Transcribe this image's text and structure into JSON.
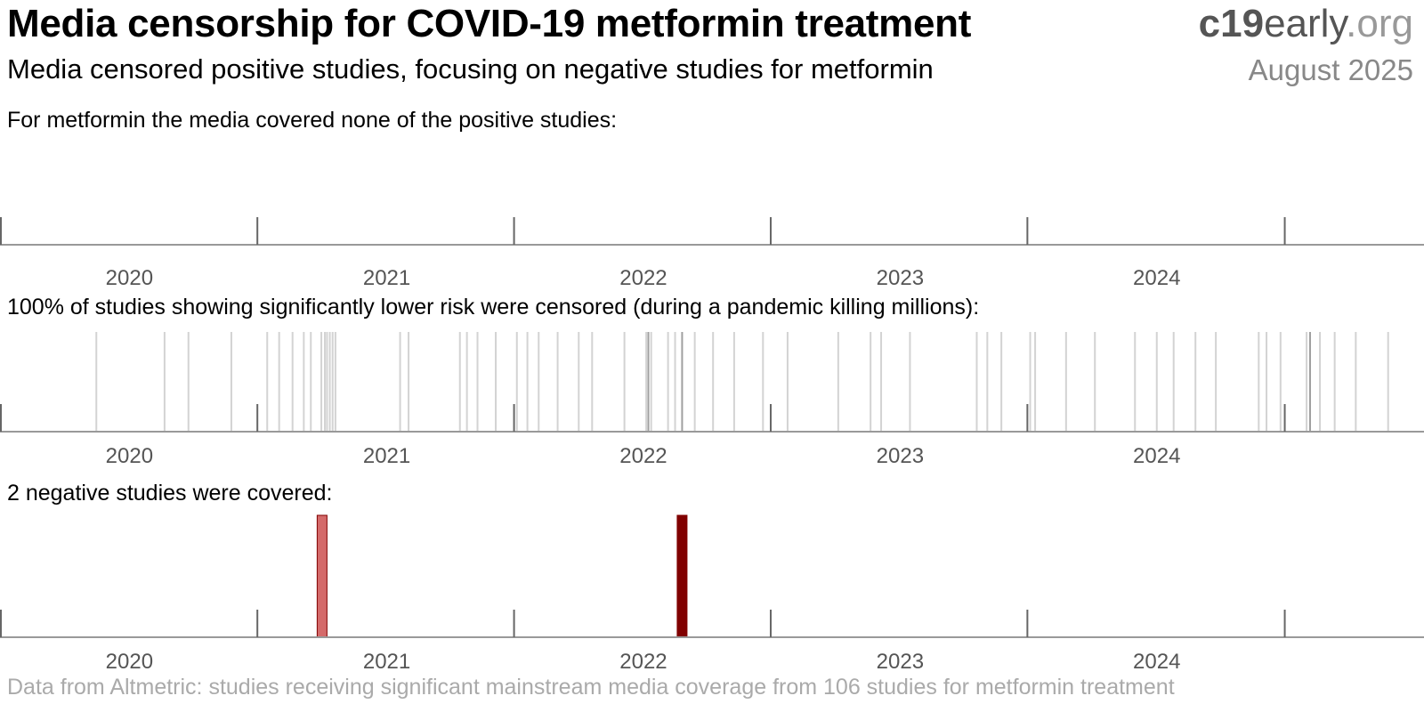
{
  "header": {
    "title": "Media censorship for COVID-19 metformin treatment",
    "brand_bold": "c19",
    "brand_mid": "early",
    "brand_end": ".org",
    "subtitle": "Media censored positive studies, focusing on negative studies for metformin",
    "date": "August 2025"
  },
  "footer": "Data from Altmetric: studies receiving significant mainstream media coverage from 106 studies for metformin treatment",
  "colors": {
    "axis": "#999999",
    "tick": "#666666",
    "censored_line": "#d3d3d3",
    "censored_line_dark": "#a0a0a0",
    "negative_light": "#d46a6a",
    "negative_dark": "#800000"
  },
  "chart_data": [
    {
      "type": "timeline",
      "title": "For metformin the media covered none of the positive studies:",
      "x_axis_type": "date",
      "xlim": [
        "2019-07-01",
        "2025-01-15"
      ],
      "ticks": [
        "2019-07-01",
        "2020-07-01",
        "2021-07-01",
        "2022-07-01",
        "2023-07-01",
        "2024-07-01"
      ],
      "tick_labels": [
        {
          "label": "2020",
          "date": "2020-01-01"
        },
        {
          "label": "2021",
          "date": "2021-01-01"
        },
        {
          "label": "2022",
          "date": "2022-01-01"
        },
        {
          "label": "2023",
          "date": "2023-01-01"
        },
        {
          "label": "2024",
          "date": "2024-01-01"
        }
      ],
      "events": []
    },
    {
      "type": "timeline",
      "title": "100% of studies showing significantly lower risk were censored (during a pandemic killing millions):",
      "x_axis_type": "date",
      "xlim": [
        "2019-07-01",
        "2025-01-15"
      ],
      "ticks": [
        "2019-07-01",
        "2020-07-01",
        "2021-07-01",
        "2022-07-01",
        "2023-07-01",
        "2024-07-01"
      ],
      "tick_labels": [
        {
          "label": "2020",
          "date": "2020-01-01"
        },
        {
          "label": "2021",
          "date": "2021-01-01"
        },
        {
          "label": "2022",
          "date": "2022-01-01"
        },
        {
          "label": "2023",
          "date": "2023-01-01"
        },
        {
          "label": "2024",
          "date": "2024-01-01"
        }
      ],
      "events": [
        {
          "date": "2019-11-15"
        },
        {
          "date": "2020-02-20"
        },
        {
          "date": "2020-03-25"
        },
        {
          "date": "2020-05-25"
        },
        {
          "date": "2020-07-15"
        },
        {
          "date": "2020-08-01"
        },
        {
          "date": "2020-08-20"
        },
        {
          "date": "2020-09-05"
        },
        {
          "date": "2020-09-15"
        },
        {
          "date": "2020-09-30"
        },
        {
          "date": "2020-10-05"
        },
        {
          "date": "2020-10-08"
        },
        {
          "date": "2020-10-12"
        },
        {
          "date": "2020-10-16"
        },
        {
          "date": "2020-10-20"
        },
        {
          "date": "2021-01-20"
        },
        {
          "date": "2021-02-01"
        },
        {
          "date": "2021-04-15"
        },
        {
          "date": "2021-04-25"
        },
        {
          "date": "2021-05-10"
        },
        {
          "date": "2021-06-05"
        },
        {
          "date": "2021-07-05"
        },
        {
          "date": "2021-07-20"
        },
        {
          "date": "2021-08-05"
        },
        {
          "date": "2021-09-01"
        },
        {
          "date": "2021-10-01"
        },
        {
          "date": "2021-10-20"
        },
        {
          "date": "2021-12-05"
        },
        {
          "date": "2022-01-05"
        },
        {
          "date": "2022-01-08",
          "dark": true
        },
        {
          "date": "2022-01-12"
        },
        {
          "date": "2022-02-05"
        },
        {
          "date": "2022-02-15"
        },
        {
          "date": "2022-02-25",
          "dark": true
        },
        {
          "date": "2022-03-15"
        },
        {
          "date": "2022-04-10"
        },
        {
          "date": "2022-05-10"
        },
        {
          "date": "2022-06-20"
        },
        {
          "date": "2022-07-25"
        },
        {
          "date": "2022-10-05"
        },
        {
          "date": "2022-11-20"
        },
        {
          "date": "2022-12-05"
        },
        {
          "date": "2023-01-15"
        },
        {
          "date": "2023-04-20"
        },
        {
          "date": "2023-05-05"
        },
        {
          "date": "2023-05-25"
        },
        {
          "date": "2023-07-05"
        },
        {
          "date": "2023-07-12"
        },
        {
          "date": "2023-08-25"
        },
        {
          "date": "2023-10-05"
        },
        {
          "date": "2023-12-01"
        },
        {
          "date": "2024-01-01"
        },
        {
          "date": "2024-01-25"
        },
        {
          "date": "2024-02-25"
        },
        {
          "date": "2024-03-25"
        },
        {
          "date": "2024-05-25"
        },
        {
          "date": "2024-06-05"
        },
        {
          "date": "2024-06-25"
        },
        {
          "date": "2024-08-01"
        },
        {
          "date": "2024-08-06",
          "dark": true
        },
        {
          "date": "2024-08-20"
        },
        {
          "date": "2024-09-10"
        },
        {
          "date": "2024-10-10"
        },
        {
          "date": "2024-11-25"
        }
      ]
    },
    {
      "type": "timeline",
      "title": "2 negative studies were covered:",
      "x_axis_type": "date",
      "xlim": [
        "2019-07-01",
        "2025-01-15"
      ],
      "ticks": [
        "2019-07-01",
        "2020-07-01",
        "2021-07-01",
        "2022-07-01",
        "2023-07-01",
        "2024-07-01"
      ],
      "tick_labels": [
        {
          "label": "2020",
          "date": "2020-01-01"
        },
        {
          "label": "2021",
          "date": "2021-01-01"
        },
        {
          "label": "2022",
          "date": "2022-01-01"
        },
        {
          "label": "2023",
          "date": "2023-01-01"
        },
        {
          "label": "2024",
          "date": "2024-01-01"
        }
      ],
      "events": [
        {
          "date": "2020-10-01",
          "color": "#d46a6a"
        },
        {
          "date": "2022-02-25",
          "color": "#800000"
        }
      ]
    }
  ]
}
